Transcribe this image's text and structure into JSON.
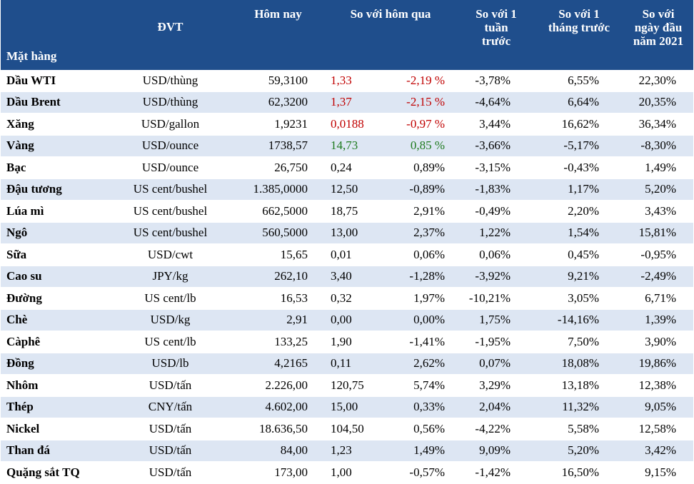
{
  "headers": {
    "item": "Mặt hàng",
    "unit": "ĐVT",
    "today": "Hôm nay",
    "vs_day": "So với hôm qua",
    "vs_week": "So với 1\ntuần\ntrước",
    "vs_month": "So với 1\ntháng trước",
    "vs_year": "So với\nngày đầu\nnăm 2021"
  },
  "rows": [
    {
      "item": "Dầu WTI",
      "unit": "USD/thùng",
      "today": "59,3100",
      "change": "1,33",
      "change_pct": "-2,19 %",
      "week": "-3,78%",
      "month": "6,55%",
      "year": "22,30%",
      "trend": "down"
    },
    {
      "item": "Dầu Brent",
      "unit": "USD/thùng",
      "today": "62,3200",
      "change": "1,37",
      "change_pct": "-2,15 %",
      "week": "-4,64%",
      "month": "6,64%",
      "year": "20,35%",
      "trend": "down"
    },
    {
      "item": "Xăng",
      "unit": "USD/gallon",
      "today": "1,9231",
      "change": "0,0188",
      "change_pct": "-0,97 %",
      "week": "3,44%",
      "month": "16,62%",
      "year": "36,34%",
      "trend": "down"
    },
    {
      "item": "Vàng",
      "unit": "USD/ounce",
      "today": "1738,57",
      "change": "14,73",
      "change_pct": "0,85 %",
      "week": "-3,66%",
      "month": "-5,17%",
      "year": "-8,30%",
      "trend": "up"
    },
    {
      "item": "Bạc",
      "unit": "USD/ounce",
      "today": "26,750",
      "change": "0,24",
      "change_pct": "0,89%",
      "week": "-3,15%",
      "month": "-0,43%",
      "year": "1,49%",
      "trend": "none"
    },
    {
      "item": "Đậu tương",
      "unit": "US cent/bushel",
      "today": "1.385,0000",
      "change": "12,50",
      "change_pct": "-0,89%",
      "week": "-1,83%",
      "month": "1,17%",
      "year": "5,20%",
      "trend": "none"
    },
    {
      "item": "Lúa mì",
      "unit": "US cent/bushel",
      "today": "662,5000",
      "change": "18,75",
      "change_pct": "2,91%",
      "week": "-0,49%",
      "month": "2,20%",
      "year": "3,43%",
      "trend": "none"
    },
    {
      "item": "Ngô",
      "unit": "US cent/bushel",
      "today": "560,5000",
      "change": "13,00",
      "change_pct": "2,37%",
      "week": "1,22%",
      "month": "1,54%",
      "year": "15,81%",
      "trend": "none"
    },
    {
      "item": "Sữa",
      "unit": "USD/cwt",
      "today": "15,65",
      "change": "0,01",
      "change_pct": "0,06%",
      "week": "0,06%",
      "month": "0,45%",
      "year": "-0,95%",
      "trend": "none"
    },
    {
      "item": "Cao su",
      "unit": "JPY/kg",
      "today": "262,10",
      "change": "3,40",
      "change_pct": "-1,28%",
      "week": "-3,92%",
      "month": "9,21%",
      "year": "-2,49%",
      "trend": "none"
    },
    {
      "item": "Đường",
      "unit": "US cent/lb",
      "today": "16,53",
      "change": "0,32",
      "change_pct": "1,97%",
      "week": "-10,21%",
      "month": "3,05%",
      "year": "6,71%",
      "trend": "none"
    },
    {
      "item": "Chè",
      "unit": "USD/kg",
      "today": "2,91",
      "change": "0,00",
      "change_pct": "0,00%",
      "week": "1,75%",
      "month": "-14,16%",
      "year": "1,39%",
      "trend": "none"
    },
    {
      "item": "Càphê",
      "unit": "US cent/lb",
      "today": "133,25",
      "change": "1,90",
      "change_pct": "-1,41%",
      "week": "-1,95%",
      "month": "7,50%",
      "year": "3,90%",
      "trend": "none"
    },
    {
      "item": "Đồng",
      "unit": "USD/lb",
      "today": "4,2165",
      "change": "0,11",
      "change_pct": "2,62%",
      "week": "0,07%",
      "month": "18,08%",
      "year": "19,86%",
      "trend": "none"
    },
    {
      "item": "Nhôm",
      "unit": "USD/tấn",
      "today": "2.226,00",
      "change": "120,75",
      "change_pct": "5,74%",
      "week": "3,29%",
      "month": "13,18%",
      "year": "12,38%",
      "trend": "none"
    },
    {
      "item": "Thép",
      "unit": "CNY/tấn",
      "today": "4.602,00",
      "change": "15,00",
      "change_pct": "0,33%",
      "week": "2,04%",
      "month": "11,32%",
      "year": "9,05%",
      "trend": "none"
    },
    {
      "item": "Nickel",
      "unit": "USD/tấn",
      "today": "18.636,50",
      "change": "104,50",
      "change_pct": "0,56%",
      "week": "-4,22%",
      "month": "5,58%",
      "year": "12,58%",
      "trend": "none"
    },
    {
      "item": "Than đá",
      "unit": "USD/tấn",
      "today": "84,00",
      "change": "1,23",
      "change_pct": "1,49%",
      "week": "9,09%",
      "month": "5,20%",
      "year": "3,42%",
      "trend": "none"
    },
    {
      "item": "Quặng sắt TQ",
      "unit": "USD/tấn",
      "today": "173,00",
      "change": "1,00",
      "change_pct": "-0,57%",
      "week": "-1,42%",
      "month": "16,50%",
      "year": "9,15%",
      "trend": "none"
    }
  ],
  "colors": {
    "header_bg": "#1f4e8c",
    "header_text": "#ffffff",
    "row_alt_bg": "#dde6f3",
    "down": "#c00000",
    "up": "#1e7a1e"
  }
}
